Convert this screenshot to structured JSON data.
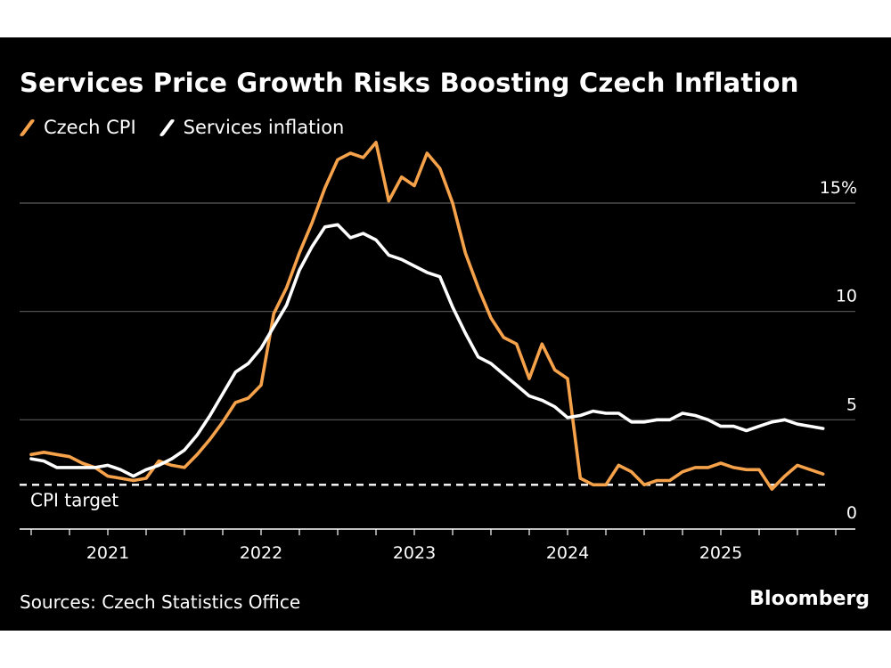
{
  "header": {
    "title": "Services Price Growth Risks Boosting Czech Inflation"
  },
  "legend": [
    {
      "label": "Czech CPI",
      "color": "#f5a24b"
    },
    {
      "label": "Services inflation",
      "color": "#ffffff"
    }
  ],
  "footer": {
    "source": "Sources: Czech Statistics Office",
    "brand": "Bloomberg"
  },
  "chart_data": {
    "type": "line",
    "title": "Services Price Growth Risks Boosting Czech Inflation",
    "xlabel": "",
    "ylabel": "",
    "ylim": [
      0,
      15
    ],
    "yticks": [
      {
        "value": 0,
        "label": "0"
      },
      {
        "value": 5,
        "label": "5"
      },
      {
        "value": 10,
        "label": "10"
      },
      {
        "value": 15,
        "label": "15%"
      }
    ],
    "xticks": [
      {
        "value": 2021.0,
        "label": "2021"
      },
      {
        "value": 2022.0,
        "label": "2022"
      },
      {
        "value": 2023.0,
        "label": "2023"
      },
      {
        "value": 2024.0,
        "label": "2024"
      },
      {
        "value": 2025.0,
        "label": "2025"
      }
    ],
    "xlim": [
      2020.5,
      2025.833
    ],
    "grid": true,
    "reference_line": {
      "label": "CPI target",
      "value": 2.0,
      "style": "dashed",
      "color": "#ffffff"
    },
    "series": [
      {
        "name": "Czech CPI",
        "color": "#f5a24b",
        "x": [
          2020.5,
          2020.583,
          2020.667,
          2020.75,
          2020.833,
          2020.917,
          2021.0,
          2021.083,
          2021.167,
          2021.25,
          2021.333,
          2021.417,
          2021.5,
          2021.583,
          2021.667,
          2021.75,
          2021.833,
          2021.917,
          2022.0,
          2022.083,
          2022.167,
          2022.25,
          2022.333,
          2022.417,
          2022.5,
          2022.583,
          2022.667,
          2022.75,
          2022.833,
          2022.917,
          2023.0,
          2023.083,
          2023.167,
          2023.25,
          2023.333,
          2023.417,
          2023.5,
          2023.583,
          2023.667,
          2023.75,
          2023.833,
          2023.917,
          2024.0,
          2024.083,
          2024.167,
          2024.25,
          2024.333,
          2024.417,
          2024.5,
          2024.583,
          2024.667,
          2024.75,
          2024.833,
          2024.917,
          2025.0,
          2025.083,
          2025.167,
          2025.25,
          2025.333,
          2025.417,
          2025.5,
          2025.583,
          2025.667
        ],
        "values": [
          3.4,
          3.5,
          3.4,
          3.3,
          3.0,
          2.8,
          2.4,
          2.3,
          2.2,
          2.3,
          3.1,
          2.9,
          2.8,
          3.4,
          4.1,
          4.9,
          5.8,
          6.0,
          6.6,
          9.9,
          11.1,
          12.7,
          14.1,
          15.7,
          17.0,
          17.3,
          17.1,
          17.8,
          15.1,
          16.2,
          15.8,
          17.3,
          16.6,
          15.0,
          12.7,
          11.1,
          9.7,
          8.8,
          8.5,
          6.9,
          8.5,
          7.3,
          6.9,
          2.3,
          2.0,
          2.0,
          2.9,
          2.6,
          2.0,
          2.2,
          2.2,
          2.6,
          2.8,
          2.8,
          3.0,
          2.8,
          2.7,
          2.7,
          1.8,
          2.4,
          2.9,
          2.7,
          2.5
        ]
      },
      {
        "name": "Services inflation",
        "color": "#ffffff",
        "x": [
          2020.5,
          2020.583,
          2020.667,
          2020.75,
          2020.833,
          2020.917,
          2021.0,
          2021.083,
          2021.167,
          2021.25,
          2021.333,
          2021.417,
          2021.5,
          2021.583,
          2021.667,
          2021.75,
          2021.833,
          2021.917,
          2022.0,
          2022.083,
          2022.167,
          2022.25,
          2022.333,
          2022.417,
          2022.5,
          2022.583,
          2022.667,
          2022.75,
          2022.833,
          2022.917,
          2023.0,
          2023.083,
          2023.167,
          2023.25,
          2023.333,
          2023.417,
          2023.5,
          2023.583,
          2023.667,
          2023.75,
          2023.833,
          2023.917,
          2024.0,
          2024.083,
          2024.167,
          2024.25,
          2024.333,
          2024.417,
          2024.5,
          2024.583,
          2024.667,
          2024.75,
          2024.833,
          2024.917,
          2025.0,
          2025.083,
          2025.167,
          2025.25,
          2025.333,
          2025.417,
          2025.5,
          2025.583,
          2025.667
        ],
        "values": [
          3.2,
          3.1,
          2.8,
          2.8,
          2.8,
          2.8,
          2.9,
          2.7,
          2.4,
          2.7,
          2.9,
          3.2,
          3.6,
          4.3,
          5.2,
          6.2,
          7.2,
          7.6,
          8.3,
          9.3,
          10.3,
          11.9,
          13.0,
          13.9,
          14.0,
          13.4,
          13.6,
          13.3,
          12.6,
          12.4,
          12.1,
          11.8,
          11.6,
          10.2,
          9.0,
          7.9,
          7.6,
          7.1,
          6.6,
          6.1,
          5.9,
          5.6,
          5.1,
          5.2,
          5.4,
          5.3,
          5.3,
          4.9,
          4.9,
          5.0,
          5.0,
          5.3,
          5.2,
          5.0,
          4.7,
          4.7,
          4.5,
          4.7,
          4.9,
          5.0,
          4.8,
          4.7,
          4.6
        ]
      }
    ]
  }
}
